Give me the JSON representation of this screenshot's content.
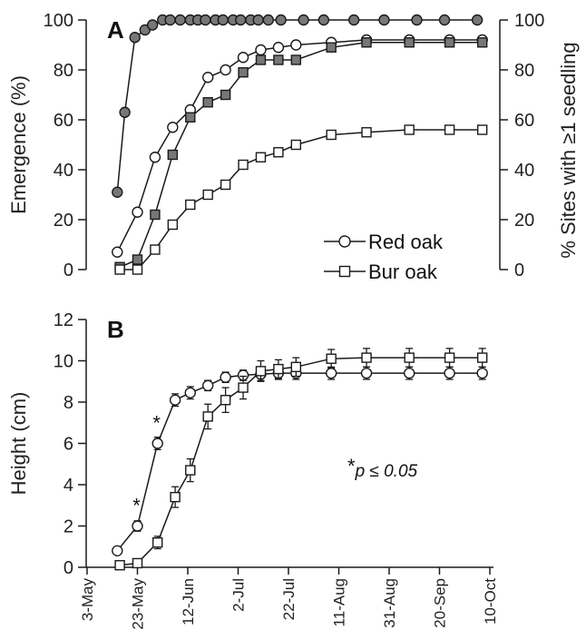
{
  "chart_data": [
    {
      "panel": "A",
      "type": "line",
      "ylabel": "Emergence (%)",
      "y2label": "% Sites with ≥1 seedling",
      "ylim": [
        0,
        100
      ],
      "yticks": [
        0,
        20,
        40,
        60,
        80,
        100
      ],
      "y2ticks": [
        0,
        20,
        40,
        60,
        80,
        100
      ],
      "legend": [
        {
          "label": "Red oak",
          "marker": "circle"
        },
        {
          "label": "Bur oak",
          "marker": "square"
        }
      ],
      "series": [
        {
          "marker": "circle",
          "fill": "#777777",
          "x": [
            "2000-05-15",
            "2000-05-18",
            "2000-05-22",
            "2000-05-26",
            "2000-05-29",
            "2000-06-02",
            "2000-06-05",
            "2000-06-09",
            "2000-06-13",
            "2000-06-16",
            "2000-06-19",
            "2000-06-23",
            "2000-06-26",
            "2000-06-30",
            "2000-07-03",
            "2000-07-07",
            "2000-07-10",
            "2000-07-14",
            "2000-07-19",
            "2000-07-28",
            "2000-08-05",
            "2000-08-17",
            "2000-08-29",
            "2000-09-11",
            "2000-09-22",
            "2000-10-05"
          ],
          "y": [
            31,
            63,
            93,
            96,
            98,
            100,
            100,
            100,
            100,
            100,
            100,
            100,
            100,
            100,
            100,
            100,
            100,
            100,
            100,
            100,
            100,
            100,
            100,
            100,
            100,
            100
          ]
        },
        {
          "marker": "circle",
          "fill": "#ffffff",
          "name": "Red oak",
          "x": [
            "2000-05-15",
            "2000-05-23",
            "2000-05-30",
            "2000-06-06",
            "2000-06-13",
            "2000-06-20",
            "2000-06-27",
            "2000-07-04",
            "2000-07-11",
            "2000-07-18",
            "2000-07-25",
            "2000-08-08",
            "2000-08-22",
            "2000-09-08",
            "2000-09-24",
            "2000-10-07"
          ],
          "y": [
            7,
            23,
            45,
            57,
            64,
            77,
            80,
            85,
            88,
            89,
            90,
            91,
            92,
            92,
            92,
            92
          ]
        },
        {
          "marker": "square",
          "fill": "#777777",
          "x": [
            "2000-05-16",
            "2000-05-23",
            "2000-05-30",
            "2000-06-06",
            "2000-06-13",
            "2000-06-20",
            "2000-06-27",
            "2000-07-04",
            "2000-07-11",
            "2000-07-18",
            "2000-07-25",
            "2000-08-08",
            "2000-08-22",
            "2000-09-08",
            "2000-09-24",
            "2000-10-07"
          ],
          "y": [
            1,
            4,
            22,
            46,
            61,
            67,
            70,
            79,
            84,
            84,
            84,
            89,
            91,
            91,
            91,
            91
          ]
        },
        {
          "marker": "square",
          "fill": "#ffffff",
          "name": "Bur oak",
          "x": [
            "2000-05-16",
            "2000-05-23",
            "2000-05-30",
            "2000-06-06",
            "2000-06-13",
            "2000-06-20",
            "2000-06-27",
            "2000-07-04",
            "2000-07-11",
            "2000-07-18",
            "2000-07-25",
            "2000-08-08",
            "2000-08-22",
            "2000-09-08",
            "2000-09-24",
            "2000-10-07"
          ],
          "y": [
            0,
            0,
            8,
            18,
            26,
            30,
            34,
            42,
            45,
            47,
            50,
            54,
            55,
            56,
            56,
            56
          ]
        }
      ]
    },
    {
      "panel": "B",
      "type": "line",
      "ylabel": "Height (cm)",
      "ylim": [
        0,
        12
      ],
      "yticks": [
        0,
        2,
        4,
        6,
        8,
        10,
        12
      ],
      "xticks": [
        "3-May",
        "23-May",
        "12-Jun",
        "2-Jul",
        "22-Jul",
        "11-Aug",
        "31-Aug",
        "20-Sep",
        "10-Oct"
      ],
      "annotation": {
        "star": "*",
        "text": "p ≤ 0.05"
      },
      "significance_marks": [
        {
          "x": "2000-05-23",
          "y": 2.0,
          "label": "*"
        },
        {
          "x": "2000-05-31",
          "y": 6.0,
          "label": "*"
        }
      ],
      "series": [
        {
          "name": "Red oak",
          "marker": "circle",
          "fill": "#ffffff",
          "x": [
            "2000-05-15",
            "2000-05-23",
            "2000-05-31",
            "2000-06-07",
            "2000-06-13",
            "2000-06-20",
            "2000-06-27",
            "2000-07-04",
            "2000-07-11",
            "2000-07-18",
            "2000-07-25",
            "2000-08-08",
            "2000-08-22",
            "2000-09-08",
            "2000-09-24",
            "2000-10-07"
          ],
          "y": [
            0.8,
            2.0,
            6.0,
            8.1,
            8.45,
            8.8,
            9.2,
            9.3,
            9.35,
            9.4,
            9.4,
            9.4,
            9.4,
            9.4,
            9.4,
            9.4
          ],
          "err": [
            0.1,
            0.25,
            0.3,
            0.3,
            0.3,
            0.25,
            0.25,
            0.25,
            0.3,
            0.3,
            0.3,
            0.3,
            0.3,
            0.3,
            0.3,
            0.3
          ]
        },
        {
          "name": "Bur oak",
          "marker": "square",
          "fill": "#ffffff",
          "x": [
            "2000-05-16",
            "2000-05-23",
            "2000-05-31",
            "2000-06-07",
            "2000-06-13",
            "2000-06-20",
            "2000-06-27",
            "2000-07-04",
            "2000-07-11",
            "2000-07-18",
            "2000-07-25",
            "2000-08-08",
            "2000-08-22",
            "2000-09-08",
            "2000-09-24",
            "2000-10-07"
          ],
          "y": [
            0.1,
            0.2,
            1.2,
            3.4,
            4.7,
            7.3,
            8.1,
            8.7,
            9.5,
            9.6,
            9.7,
            10.1,
            10.15,
            10.15,
            10.15,
            10.15
          ],
          "err": [
            0.1,
            0.1,
            0.3,
            0.5,
            0.55,
            0.6,
            0.6,
            0.55,
            0.5,
            0.45,
            0.45,
            0.45,
            0.45,
            0.45,
            0.45,
            0.45
          ]
        }
      ]
    }
  ]
}
